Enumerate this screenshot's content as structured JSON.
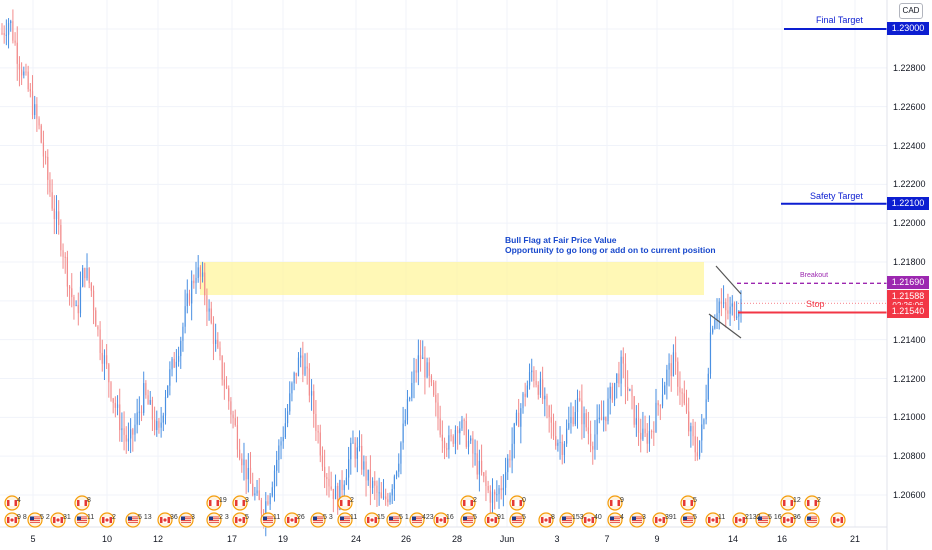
{
  "currency_badge": "CAD",
  "price_axis": {
    "ticks": [
      "1.23000",
      "1.22800",
      "1.22600",
      "1.22400",
      "1.22200",
      "1.22000",
      "1.21800",
      "1.21600",
      "1.21400",
      "1.21200",
      "1.21000",
      "1.20800",
      "1.20600"
    ],
    "tick_values": [
      1.23,
      1.228,
      1.226,
      1.224,
      1.222,
      1.22,
      1.218,
      1.216,
      1.214,
      1.212,
      1.21,
      1.208,
      1.206
    ]
  },
  "time_axis": {
    "ticks": [
      "5",
      "10",
      "12",
      "17",
      "19",
      "24",
      "26",
      "28",
      "Jun",
      "3",
      "7",
      "9",
      "14",
      "16",
      "21"
    ]
  },
  "levels": {
    "final_target": {
      "label": "Final Target",
      "price": "1.23000",
      "value": 1.23,
      "color": "#0c1ed1"
    },
    "safety_target": {
      "label": "Safety Target",
      "price": "1.22100",
      "value": 1.221,
      "color": "#0c1ed1"
    },
    "breakout": {
      "label": "Breakout",
      "price": "1.21690",
      "value": 1.2169,
      "color": "#9c27b0"
    },
    "current": {
      "price": "1.21588",
      "countdown": "02:26:06",
      "value": 1.21588,
      "color": "#f23645"
    },
    "stop": {
      "label": "Stop",
      "price": "1.21540",
      "value": 1.2154,
      "color": "#f23645"
    }
  },
  "fair_value_zone": {
    "from": 1.2163,
    "to": 1.218,
    "color": "#fff59d"
  },
  "annotation": {
    "line1": "Bull Flag at Fair Price Value",
    "line2": "Opportunity to go long or add on to current position",
    "color": "#1848cc"
  },
  "chart_data": {
    "type": "candlestick",
    "instrument_currency": "CAD",
    "ylim": [
      1.2046,
      1.2315
    ],
    "x_tick_labels": [
      "5",
      "10",
      "12",
      "17",
      "19",
      "24",
      "26",
      "28",
      "Jun",
      "3",
      "7",
      "9",
      "14",
      "16",
      "21"
    ],
    "up_color": "#4a90e2",
    "down_color": "#f28b8b",
    "price_path": [
      1.2298,
      1.2305,
      1.2288,
      1.2275,
      1.2262,
      1.2248,
      1.2225,
      1.2205,
      1.219,
      1.2168,
      1.2152,
      1.2178,
      1.2165,
      1.214,
      1.2125,
      1.2108,
      1.2095,
      1.2085,
      1.2098,
      1.2112,
      1.2102,
      1.209,
      1.2116,
      1.2128,
      1.2142,
      1.2162,
      1.2176,
      1.2168,
      1.2148,
      1.213,
      1.2115,
      1.2098,
      1.2082,
      1.2068,
      1.2058,
      1.2052,
      1.2065,
      1.2082,
      1.2098,
      1.2118,
      1.2132,
      1.2118,
      1.2098,
      1.2078,
      1.2065,
      1.2058,
      1.2072,
      1.2085,
      1.2079,
      1.2068,
      1.2062,
      1.2055,
      1.2063,
      1.2078,
      1.2098,
      1.2118,
      1.2132,
      1.2122,
      1.2105,
      1.2092,
      1.2085,
      1.2098,
      1.2092,
      1.2082,
      1.2072,
      1.2062,
      1.2058,
      1.2066,
      1.2081,
      1.2098,
      1.2112,
      1.2124,
      1.2116,
      1.2101,
      1.2091,
      1.2086,
      1.2096,
      1.2108,
      1.2098,
      1.2088,
      1.2096,
      1.2104,
      1.2117,
      1.2126,
      1.2112,
      1.2096,
      1.2088,
      1.2094,
      1.2108,
      1.2122,
      1.2128,
      1.2113,
      1.2094,
      1.2082,
      1.2096,
      1.2148,
      1.216,
      1.2153,
      1.2156,
      1.2159
    ]
  },
  "event_markers": {
    "numbers_top": [
      "4",
      "8",
      "19",
      "3",
      "2",
      "2",
      "0",
      "9",
      "5",
      "12",
      "2"
    ],
    "numbers_bottom": [
      "9 8",
      "5 2",
      "31",
      "11",
      "2",
      "5 13",
      "36",
      "3",
      "2 3",
      "5",
      "11",
      "26",
      "5 3",
      "11",
      "15",
      "5 1",
      "423",
      "16",
      "5",
      "91",
      "5",
      "8",
      "153",
      "40",
      "4",
      "3",
      "391",
      "5",
      "11",
      "2132",
      "5 16",
      "36"
    ]
  }
}
